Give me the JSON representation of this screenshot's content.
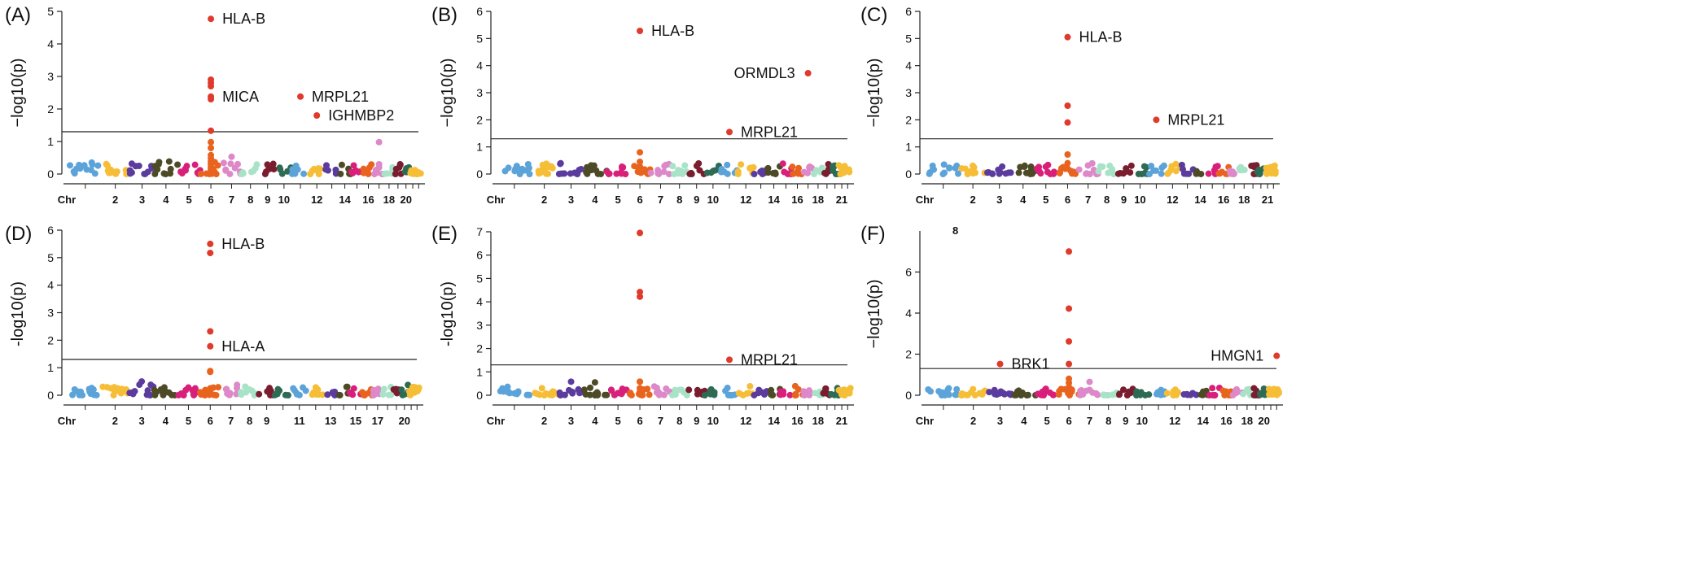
{
  "figure": {
    "threshold_y": 1.3,
    "chr_colors": [
      "#5ba3d9",
      "#f6be37",
      "#5b3b9e",
      "#4d4a26",
      "#d81f7a",
      "#e8641e",
      "#dd88c8",
      "#a8e3c8",
      "#7a1d2e",
      "#2e6b55",
      "#5ba3d9",
      "#f6be37",
      "#5b3b9e",
      "#4d4a26",
      "#d81f7a",
      "#e8641e",
      "#dd88c8",
      "#a8e3c8",
      "#7a1d2e",
      "#2e6b55",
      "#f6be37",
      "#f6be37"
    ],
    "sig_color": "#e03a2c"
  },
  "chart_data": [
    {
      "panel": "(A)",
      "type": "scatter",
      "ylabel": "−log10(p)",
      "ylim": [
        0,
        5
      ],
      "yticks": [
        "0",
        "1",
        "2",
        "3",
        "4",
        "5"
      ],
      "xticklabels": [
        "Chr",
        "2",
        "3",
        "4",
        "5",
        "6",
        "7",
        "8",
        "9",
        "10",
        "12",
        "14",
        "16",
        "18",
        "20"
      ],
      "xtick_chr": [
        0,
        2,
        3,
        4,
        5,
        6,
        7,
        8,
        9,
        10,
        12,
        14,
        16,
        18,
        20
      ],
      "threshold": 1.3,
      "peaks": [
        {
          "chr": 6,
          "values": [
            4.77,
            2.9,
            2.8,
            2.7,
            2.38,
            2.3,
            1.33,
            0.98,
            0.8,
            0.58,
            0.48,
            0.38,
            0.3,
            0.22,
            0.15,
            0.08
          ]
        },
        {
          "chr": 11,
          "values": [
            2.38
          ]
        },
        {
          "chr": 12,
          "values": [
            1.8
          ]
        },
        {
          "chr": 17,
          "values": [
            0.98,
            0.3,
            0.2
          ]
        },
        {
          "chr": 7,
          "values": [
            0.53
          ]
        }
      ],
      "genes": [
        {
          "label": "HLA-B",
          "chr": 6,
          "y": 4.77,
          "side": "right"
        },
        {
          "label": "MICA",
          "chr": 6,
          "y": 2.38,
          "side": "right"
        },
        {
          "label": "MRPL21",
          "chr": 11,
          "y": 2.38,
          "side": "right"
        },
        {
          "label": "IGHMBP2",
          "chr": 12,
          "y": 1.8,
          "side": "right"
        }
      ]
    },
    {
      "panel": "(B)",
      "type": "scatter",
      "ylabel": "−log10(p)",
      "ylim": [
        0,
        6
      ],
      "yticks": [
        "0",
        "1",
        "2",
        "3",
        "4",
        "5",
        "6"
      ],
      "xticklabels": [
        "Chr",
        "2",
        "3",
        "4",
        "5",
        "6",
        "7",
        "8",
        "9",
        "10",
        "12",
        "14",
        "16",
        "18",
        "21"
      ],
      "xtick_chr": [
        0,
        2,
        3,
        4,
        5,
        6,
        7,
        8,
        9,
        10,
        12,
        14,
        16,
        18,
        21
      ],
      "threshold": 1.3,
      "peaks": [
        {
          "chr": 6,
          "values": [
            5.28,
            0.8,
            0.45,
            0.28,
            0.15
          ]
        },
        {
          "chr": 17,
          "values": [
            3.72
          ]
        },
        {
          "chr": 11,
          "values": [
            1.55
          ]
        }
      ],
      "genes": [
        {
          "label": "HLA-B",
          "chr": 6,
          "y": 5.28,
          "side": "right"
        },
        {
          "label": "ORMDL3",
          "chr": 17,
          "y": 3.72,
          "side": "left"
        },
        {
          "label": "MRPL21",
          "chr": 11,
          "y": 1.55,
          "side": "right"
        }
      ]
    },
    {
      "panel": "(C)",
      "type": "scatter",
      "ylabel": "−log10(p)",
      "ylim": [
        0,
        6
      ],
      "yticks": [
        "0",
        "1",
        "2",
        "3",
        "4",
        "5",
        "6"
      ],
      "xticklabels": [
        "Chr",
        "2",
        "3",
        "4",
        "5",
        "6",
        "7",
        "8",
        "9",
        "10",
        "12",
        "14",
        "16",
        "18",
        "21"
      ],
      "xtick_chr": [
        0,
        2,
        3,
        4,
        5,
        6,
        7,
        8,
        9,
        10,
        12,
        14,
        16,
        18,
        21
      ],
      "threshold": 1.3,
      "peaks": [
        {
          "chr": 6,
          "values": [
            5.05,
            2.52,
            1.9,
            0.72,
            0.4,
            0.2
          ]
        },
        {
          "chr": 11,
          "values": [
            2.0
          ]
        }
      ],
      "genes": [
        {
          "label": "HLA-B",
          "chr": 6,
          "y": 5.05,
          "side": "right"
        },
        {
          "label": "MRPL21",
          "chr": 11,
          "y": 2.0,
          "side": "right"
        }
      ]
    },
    {
      "panel": "(D)",
      "type": "scatter",
      "ylabel": "-log10(p)",
      "ylim": [
        0,
        6
      ],
      "yticks": [
        "0",
        "1",
        "2",
        "3",
        "4",
        "5",
        "6"
      ],
      "xticklabels": [
        "Chr",
        "2",
        "3",
        "4",
        "5",
        "6",
        "7",
        "8",
        "9",
        "11",
        "13",
        "15",
        "17",
        "20"
      ],
      "xtick_chr": [
        0,
        2,
        3,
        4,
        5,
        6,
        7,
        8,
        9,
        11,
        13,
        15,
        17,
        20
      ],
      "threshold": 1.3,
      "peaks": [
        {
          "chr": 6,
          "values": [
            5.5,
            5.17,
            2.32,
            1.78,
            0.88,
            0.85,
            0.25,
            0.1
          ]
        },
        {
          "chr": 3,
          "values": [
            0.5
          ]
        },
        {
          "chr": 5,
          "values": [
            0.28
          ]
        }
      ],
      "genes": [
        {
          "label": "HLA-B",
          "chr": 6,
          "y": 5.5,
          "side": "right"
        },
        {
          "label": "HLA-A",
          "chr": 6,
          "y": 1.78,
          "side": "right"
        }
      ]
    },
    {
      "panel": "(E)",
      "type": "scatter",
      "ylabel": "-log10(p)",
      "ylim": [
        0,
        7
      ],
      "yticks": [
        "0",
        "1",
        "2",
        "3",
        "4",
        "5",
        "6",
        "7"
      ],
      "xticklabels": [
        "Chr",
        "2",
        "3",
        "4",
        "5",
        "6",
        "7",
        "8",
        "9",
        "10",
        "12",
        "14",
        "16",
        "18",
        "21"
      ],
      "xtick_chr": [
        0,
        2,
        3,
        4,
        5,
        6,
        7,
        8,
        9,
        10,
        12,
        14,
        16,
        18,
        21
      ],
      "threshold": 1.3,
      "peaks": [
        {
          "chr": 6,
          "values": [
            6.95,
            4.42,
            4.22,
            0.58,
            0.58,
            0.3,
            0.15
          ]
        },
        {
          "chr": 11,
          "values": [
            1.52
          ]
        },
        {
          "chr": 3,
          "values": [
            0.58
          ]
        },
        {
          "chr": 4,
          "values": [
            0.55
          ]
        }
      ],
      "genes": [
        {
          "label": "MRPL21",
          "chr": 11,
          "y": 1.52,
          "side": "right"
        }
      ]
    },
    {
      "panel": "(F)",
      "type": "scatter",
      "ylabel": "−log10(p)",
      "ylim": [
        0,
        8
      ],
      "yticks": [
        "0",
        "2",
        "4",
        "6"
      ],
      "top_label": "8",
      "xticklabels": [
        "Chr",
        "2",
        "3",
        "4",
        "5",
        "6",
        "7",
        "8",
        "9",
        "10",
        "12",
        "14",
        "16",
        "18",
        "20"
      ],
      "xtick_chr": [
        0,
        2,
        3,
        4,
        5,
        6,
        7,
        8,
        9,
        10,
        12,
        14,
        16,
        18,
        20
      ],
      "threshold": 1.3,
      "peaks": [
        {
          "chr": 6,
          "values": [
            7.0,
            4.22,
            2.62,
            1.52,
            0.8,
            0.6,
            0.4,
            0.2
          ]
        },
        {
          "chr": 3,
          "values": [
            1.52
          ]
        },
        {
          "chr": 22,
          "values": [
            1.92
          ]
        },
        {
          "chr": 7,
          "values": [
            0.65
          ]
        }
      ],
      "genes": [
        {
          "label": "BRK1",
          "chr": 3,
          "y": 1.52,
          "side": "right"
        },
        {
          "label": "HMGN1",
          "chr": 22,
          "y": 1.92,
          "side": "left"
        }
      ]
    }
  ]
}
